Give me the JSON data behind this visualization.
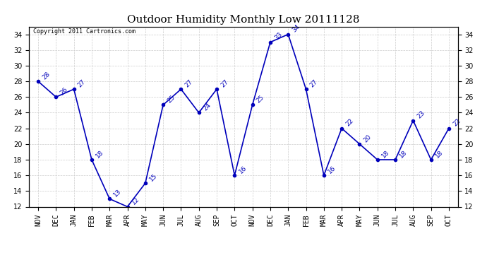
{
  "title": "Outdoor Humidity Monthly Low 20111128",
  "copyright": "Copyright 2011 Cartronics.com",
  "months": [
    "NOV",
    "DEC",
    "JAN",
    "FEB",
    "MAR",
    "APR",
    "MAY",
    "JUN",
    "JUL",
    "AUG",
    "SEP",
    "OCT",
    "NOV",
    "DEC",
    "JAN",
    "FEB",
    "MAR",
    "APR",
    "MAY",
    "JUN",
    "JUL",
    "AUG",
    "SEP",
    "OCT"
  ],
  "values": [
    28,
    26,
    27,
    18,
    13,
    12,
    15,
    25,
    27,
    24,
    27,
    16,
    25,
    33,
    34,
    27,
    16,
    22,
    20,
    18,
    18,
    23,
    18,
    22
  ],
  "line_color": "#0000bb",
  "marker": "o",
  "marker_size": 3,
  "ylim": [
    12,
    35
  ],
  "ytick_step": 2,
  "grid_color": "#cccccc",
  "background_color": "#ffffff",
  "title_fontsize": 11,
  "label_fontsize": 6.5,
  "tick_fontsize": 7,
  "copyright_fontsize": 6
}
